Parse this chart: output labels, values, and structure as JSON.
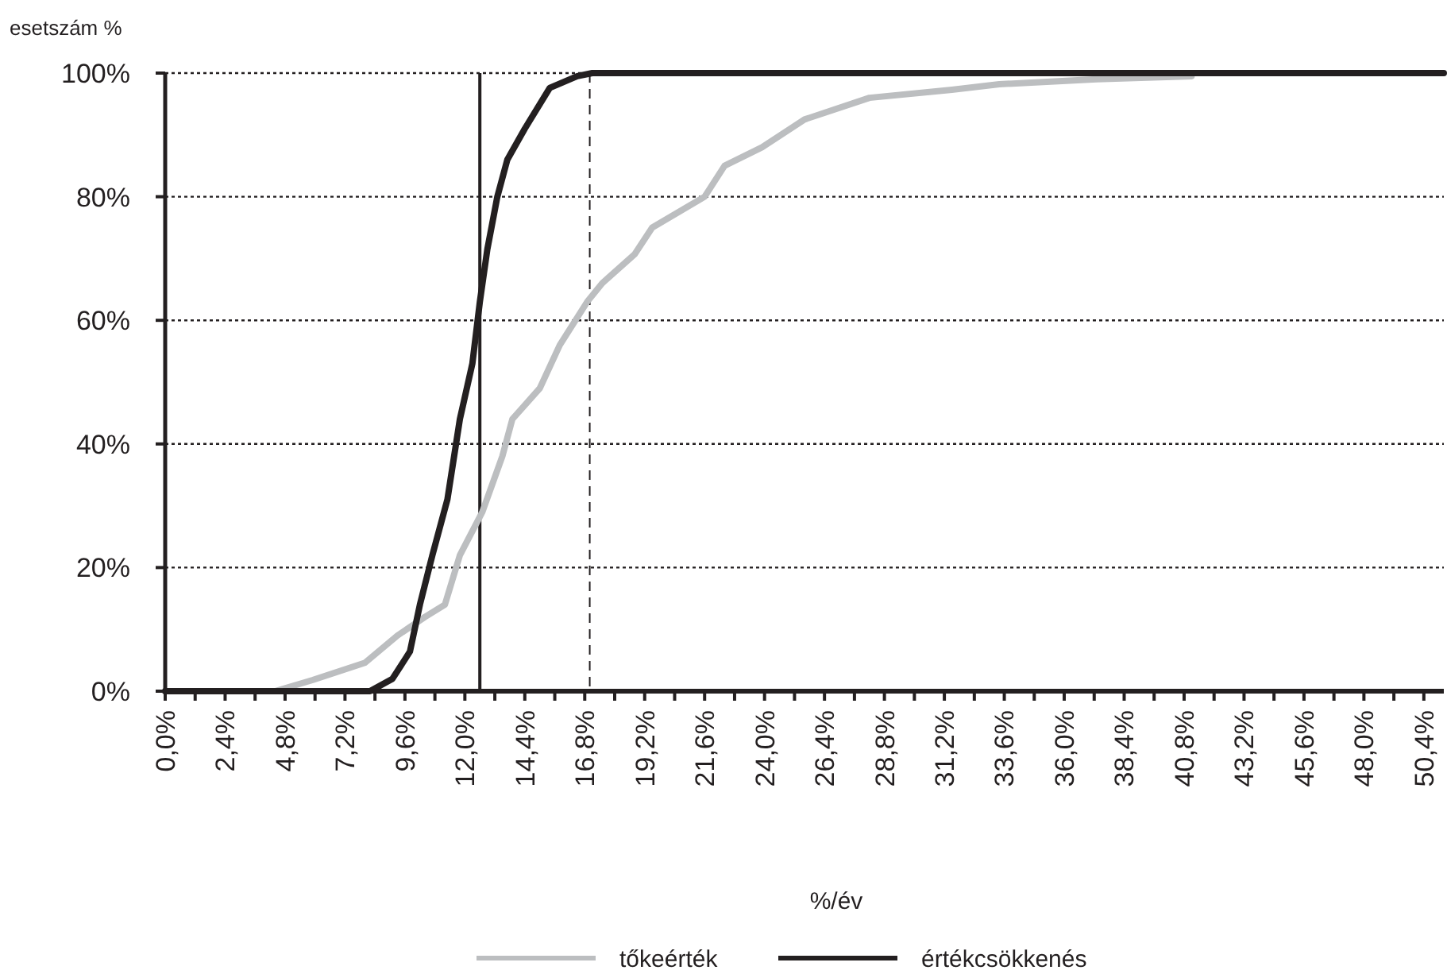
{
  "chart_data": {
    "type": "line",
    "xlabel": "%/év",
    "ylabel": "esetszám %",
    "xlim": [
      0,
      51.2
    ],
    "ylim": [
      0,
      100
    ],
    "xticks": [
      {
        "value": 0,
        "label": "0,0%"
      },
      {
        "value": 1.2,
        "label": null
      },
      {
        "value": 2.4,
        "label": "2,4%"
      },
      {
        "value": 3.6,
        "label": null
      },
      {
        "value": 4.8,
        "label": "4,8%"
      },
      {
        "value": 6,
        "label": null
      },
      {
        "value": 7.2,
        "label": "7,2%"
      },
      {
        "value": 8.4,
        "label": null
      },
      {
        "value": 9.6,
        "label": "9,6%"
      },
      {
        "value": 10.8,
        "label": null
      },
      {
        "value": 12,
        "label": "12,0%"
      },
      {
        "value": 13.2,
        "label": null
      },
      {
        "value": 14.4,
        "label": "14,4%"
      },
      {
        "value": 15.6,
        "label": null
      },
      {
        "value": 16.8,
        "label": "16,8%"
      },
      {
        "value": 18,
        "label": null
      },
      {
        "value": 19.2,
        "label": "19,2%"
      },
      {
        "value": 20.4,
        "label": null
      },
      {
        "value": 21.6,
        "label": "21,6%"
      },
      {
        "value": 22.8,
        "label": null
      },
      {
        "value": 24,
        "label": "24,0%"
      },
      {
        "value": 25.2,
        "label": null
      },
      {
        "value": 26.4,
        "label": "26,4%"
      },
      {
        "value": 27.6,
        "label": null
      },
      {
        "value": 28.8,
        "label": "28,8%"
      },
      {
        "value": 30,
        "label": null
      },
      {
        "value": 31.2,
        "label": "31,2%"
      },
      {
        "value": 32.4,
        "label": null
      },
      {
        "value": 33.6,
        "label": "33,6%"
      },
      {
        "value": 34.8,
        "label": null
      },
      {
        "value": 36,
        "label": "36,0%"
      },
      {
        "value": 37.2,
        "label": null
      },
      {
        "value": 38.4,
        "label": "38,4%"
      },
      {
        "value": 39.6,
        "label": null
      },
      {
        "value": 40.8,
        "label": "40,8%"
      },
      {
        "value": 42,
        "label": null
      },
      {
        "value": 43.2,
        "label": "43,2%"
      },
      {
        "value": 44.4,
        "label": null
      },
      {
        "value": 45.6,
        "label": "45,6%"
      },
      {
        "value": 46.8,
        "label": null
      },
      {
        "value": 48,
        "label": "48,0%"
      },
      {
        "value": 49.2,
        "label": null
      },
      {
        "value": 50.4,
        "label": "50,4%"
      }
    ],
    "yticks": [
      {
        "value": 0,
        "label": "0%"
      },
      {
        "value": 20,
        "label": "20%"
      },
      {
        "value": 40,
        "label": "40%"
      },
      {
        "value": 60,
        "label": "60%"
      },
      {
        "value": 80,
        "label": "80%"
      },
      {
        "value": 100,
        "label": "100%"
      }
    ],
    "grid": "y",
    "legend": "bottom",
    "marker": "none",
    "line_style": "solid",
    "ref_lines": [
      {
        "axis": "x",
        "value": 12.6,
        "color": "#231f20",
        "line_style": "solid"
      },
      {
        "axis": "x",
        "value": 17,
        "color": "#231f20",
        "line_style": "dashed"
      }
    ],
    "series": [
      {
        "name": "tőkeérték",
        "color": "#bcbec0",
        "x": [
          0,
          4.4,
          5.9,
          8.0,
          9.3,
          10.4,
          11.2,
          11.8,
          12.7,
          13.5,
          13.9,
          15.0,
          15.8,
          16.9,
          17.5,
          18.8,
          19.5,
          21.6,
          22.4,
          23.9,
          25.6,
          28.2,
          31.5,
          33.4,
          37.3,
          41.1
        ],
        "values": [
          0,
          0,
          1.8,
          4.6,
          9,
          12,
          14,
          22,
          29,
          38,
          44,
          49,
          56,
          63,
          66,
          70.7,
          75,
          80,
          85,
          88,
          92.5,
          96,
          97.3,
          98.2,
          99,
          99.5
        ]
      },
      {
        "name": "értékcsökkenés",
        "color": "#231f20",
        "x": [
          0,
          8.2,
          9.1,
          9.8,
          10.2,
          10.7,
          11.3,
          11.8,
          12.3,
          12.6,
          12.9,
          13.3,
          13.7,
          14.4,
          15.4,
          16.5,
          17.1,
          51.2
        ],
        "values": [
          0,
          0,
          2,
          6.4,
          14,
          22,
          31,
          44,
          53,
          63,
          71.5,
          80,
          86,
          91,
          97.6,
          99.5,
          100,
          100
        ]
      }
    ]
  }
}
